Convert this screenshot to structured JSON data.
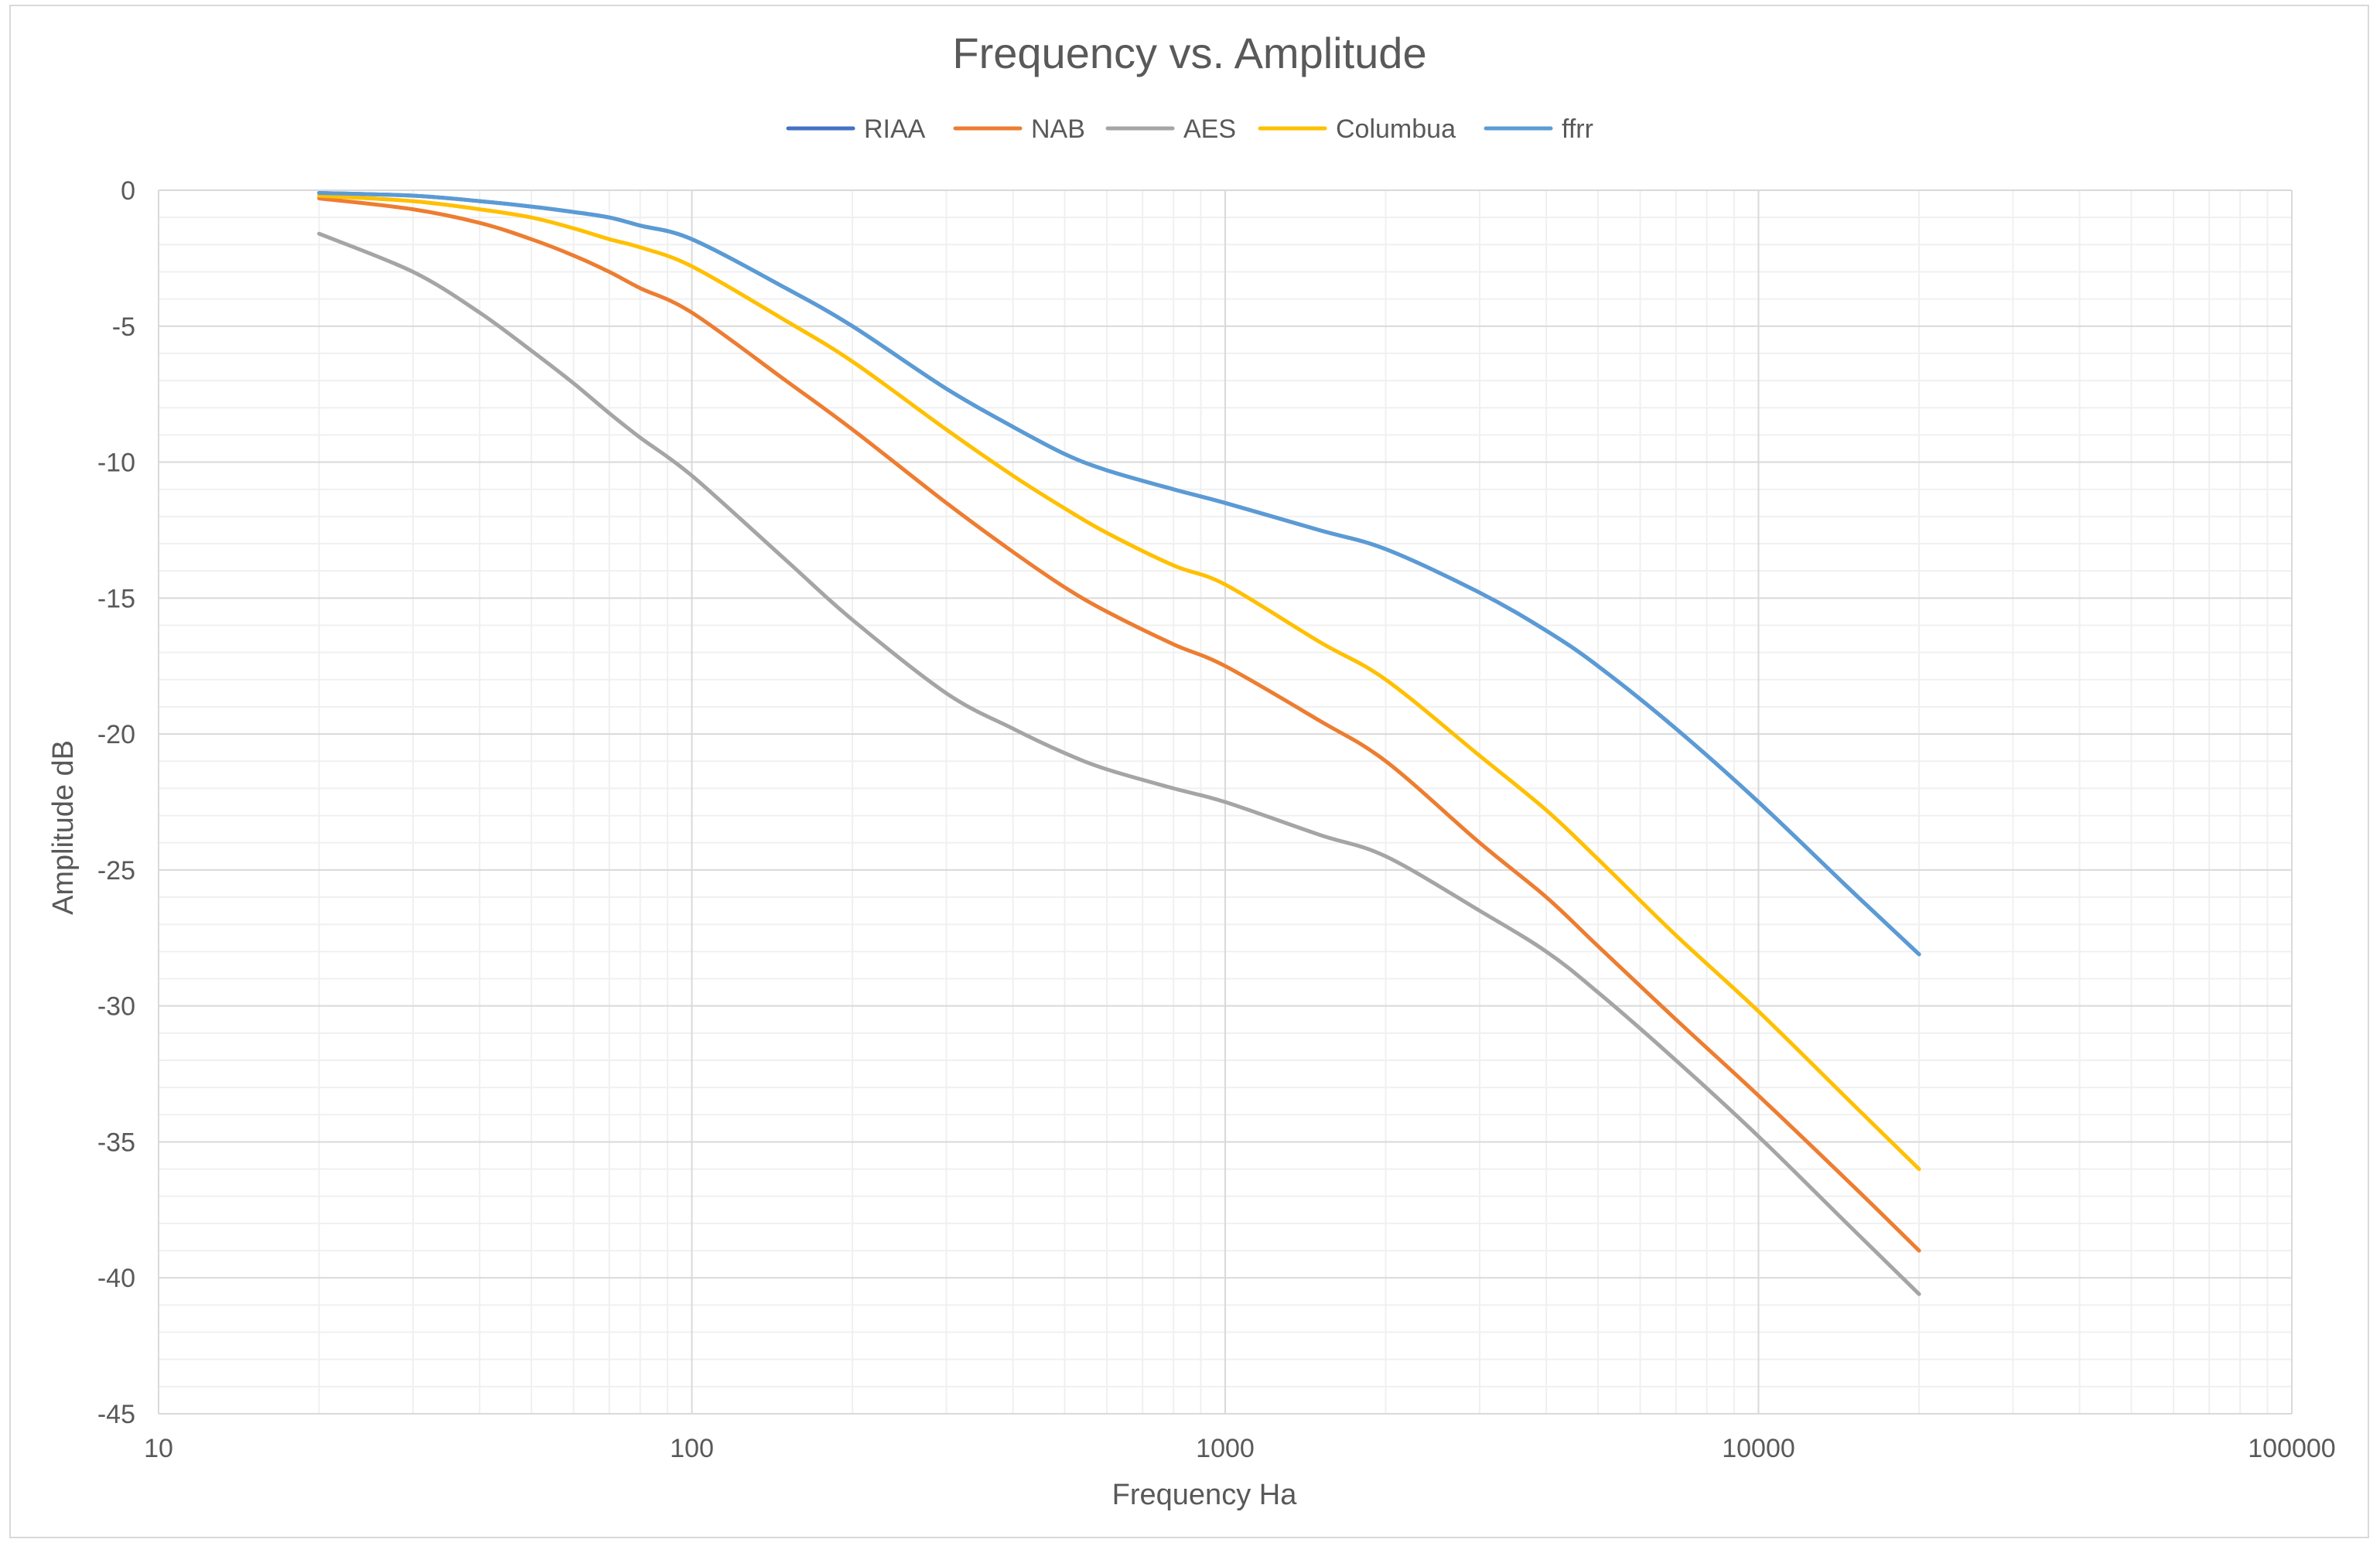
{
  "chart_data": {
    "type": "line",
    "title": "Frequency vs. Amplitude",
    "xlabel": "Frequency Ha",
    "ylabel": "Amplitude dB",
    "x_scale": "log",
    "xlim": [
      10,
      100000
    ],
    "ylim": [
      -45,
      0
    ],
    "x_tick_labels": [
      "10",
      "100",
      "1000",
      "10000",
      "100000"
    ],
    "y_tick_labels": [
      "0",
      "-5",
      "-10",
      "-15",
      "-20",
      "-25",
      "-30",
      "-35",
      "-40",
      "-45"
    ],
    "grid": true,
    "legend_position": "top",
    "series": [
      {
        "name": "RIAA",
        "color": "#4472c4",
        "x": [
          20,
          30,
          40,
          50,
          60,
          70,
          80,
          100,
          150,
          200,
          300,
          400,
          500,
          600,
          800,
          1000,
          1500,
          2000,
          3000,
          4000,
          5000,
          7000,
          10000,
          15000,
          20000
        ],
        "y": [
          -0.1,
          -0.2,
          -0.4,
          -0.6,
          -0.8,
          -1.0,
          -1.3,
          -1.8,
          -3.6,
          -5.0,
          -7.3,
          -8.7,
          -9.7,
          -10.3,
          -11.0,
          -11.5,
          -12.5,
          -13.2,
          -14.8,
          -16.2,
          -17.5,
          -19.8,
          -22.5,
          -25.8,
          -28.1
        ]
      },
      {
        "name": "NAB",
        "color": "#ed7d31",
        "x": [
          20,
          30,
          40,
          50,
          60,
          70,
          80,
          100,
          150,
          200,
          300,
          400,
          500,
          600,
          800,
          1000,
          1500,
          2000,
          3000,
          4000,
          5000,
          7000,
          10000,
          15000,
          20000
        ],
        "y": [
          -0.3,
          -0.7,
          -1.2,
          -1.8,
          -2.4,
          -3.0,
          -3.6,
          -4.5,
          -7.0,
          -8.8,
          -11.5,
          -13.3,
          -14.6,
          -15.5,
          -16.7,
          -17.5,
          -19.5,
          -21.0,
          -24.0,
          -26.0,
          -27.8,
          -30.5,
          -33.3,
          -36.6,
          -39.0
        ]
      },
      {
        "name": "AES",
        "color": "#a5a5a5",
        "x": [
          20,
          30,
          40,
          50,
          60,
          70,
          80,
          100,
          150,
          200,
          300,
          400,
          500,
          600,
          800,
          1000,
          1500,
          2000,
          3000,
          4000,
          5000,
          7000,
          10000,
          15000,
          20000
        ],
        "y": [
          -1.6,
          -3.0,
          -4.5,
          -5.9,
          -7.1,
          -8.2,
          -9.1,
          -10.5,
          -13.6,
          -15.8,
          -18.5,
          -19.8,
          -20.7,
          -21.3,
          -22.0,
          -22.5,
          -23.7,
          -24.5,
          -26.5,
          -28.0,
          -29.5,
          -32.0,
          -34.8,
          -38.2,
          -40.6
        ]
      },
      {
        "name": "Columbua",
        "color": "#ffc000",
        "x": [
          20,
          30,
          40,
          50,
          60,
          70,
          80,
          100,
          150,
          200,
          300,
          400,
          500,
          600,
          800,
          1000,
          1500,
          2000,
          3000,
          4000,
          5000,
          7000,
          10000,
          15000,
          20000
        ],
        "y": [
          -0.2,
          -0.4,
          -0.7,
          -1.0,
          -1.4,
          -1.8,
          -2.1,
          -2.8,
          -4.8,
          -6.3,
          -8.8,
          -10.5,
          -11.7,
          -12.6,
          -13.8,
          -14.5,
          -16.6,
          -18.0,
          -20.8,
          -22.8,
          -24.6,
          -27.4,
          -30.2,
          -33.6,
          -36.0
        ]
      },
      {
        "name": "ffrr",
        "color": "#5b9bd5",
        "x": [
          20,
          30,
          40,
          50,
          60,
          70,
          80,
          100,
          150,
          200,
          300,
          400,
          500,
          600,
          800,
          1000,
          1500,
          2000,
          3000,
          4000,
          5000,
          7000,
          10000,
          15000,
          20000
        ],
        "y": [
          -0.1,
          -0.2,
          -0.4,
          -0.6,
          -0.8,
          -1.0,
          -1.3,
          -1.8,
          -3.6,
          -5.0,
          -7.3,
          -8.7,
          -9.7,
          -10.3,
          -11.0,
          -11.5,
          -12.5,
          -13.2,
          -14.8,
          -16.2,
          -17.5,
          -19.8,
          -22.5,
          -25.8,
          -28.1
        ]
      }
    ]
  }
}
